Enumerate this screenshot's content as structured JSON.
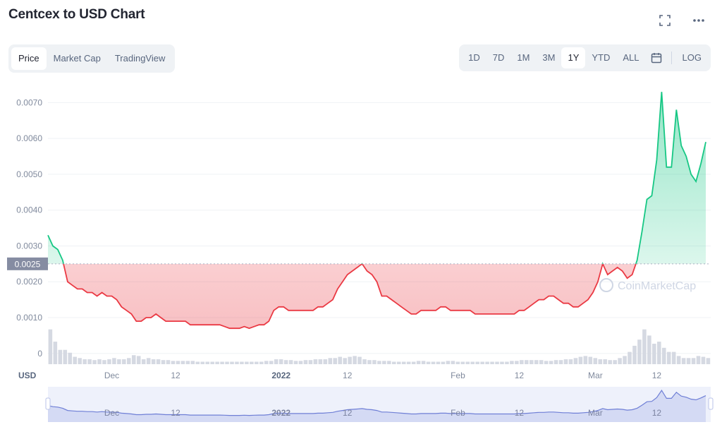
{
  "header": {
    "title": "Centcex to USD Chart",
    "icons": [
      "fullscreen-icon",
      "more-icon"
    ]
  },
  "tabs": [
    {
      "label": "Price",
      "active": true
    },
    {
      "label": "Market Cap",
      "active": false
    },
    {
      "label": "TradingView",
      "active": false
    }
  ],
  "ranges": [
    {
      "label": "1D",
      "active": false
    },
    {
      "label": "7D",
      "active": false
    },
    {
      "label": "1M",
      "active": false
    },
    {
      "label": "3M",
      "active": false
    },
    {
      "label": "1Y",
      "active": true
    },
    {
      "label": "YTD",
      "active": false
    },
    {
      "label": "ALL",
      "active": false
    }
  ],
  "log_label": "LOG",
  "watermark": "CoinMarketCap",
  "colors": {
    "up": "#16c784",
    "down": "#ea3943",
    "grid": "#eff2f5",
    "axis": "#808a9d",
    "navigator": "#b9c3e8"
  },
  "chart_data": {
    "type": "area",
    "ylabel": "USD",
    "ylim": [
      -0.0003,
      0.0075
    ],
    "yticks": [
      0,
      0.001,
      0.002,
      0.003,
      0.004,
      0.005,
      0.006,
      0.007
    ],
    "ytick_labels": [
      "0",
      "0.0010",
      "0.0020",
      "0.0030",
      "0.0040",
      "0.0050",
      "0.0060",
      "0.0070"
    ],
    "baseline": 0.0025,
    "baseline_label": "0.0025",
    "xlim": [
      0,
      135
    ],
    "x_ticks": [
      {
        "x": 13,
        "label": "Dec",
        "bold": false
      },
      {
        "x": 26,
        "label": "12",
        "bold": false
      },
      {
        "x": 47.5,
        "label": "2022",
        "bold": true
      },
      {
        "x": 61,
        "label": "12",
        "bold": false
      },
      {
        "x": 83.5,
        "label": "Feb",
        "bold": false
      },
      {
        "x": 96,
        "label": "12",
        "bold": false
      },
      {
        "x": 111.5,
        "label": "Mar",
        "bold": false
      },
      {
        "x": 124,
        "label": "12",
        "bold": false
      }
    ],
    "x_unit": "days (index)",
    "series": [
      {
        "x": [
          0,
          1,
          2,
          3,
          4,
          5,
          6,
          7,
          8,
          9,
          10,
          11,
          12,
          13,
          14,
          15,
          16,
          17,
          18,
          19,
          20,
          21,
          22,
          23,
          24,
          25,
          26,
          27,
          28,
          29,
          30,
          31,
          32,
          33,
          34,
          35,
          36,
          37,
          38,
          39,
          40,
          41,
          42,
          43,
          44,
          45,
          46,
          47,
          48,
          49,
          50,
          51,
          52,
          53,
          54,
          55,
          56,
          57,
          58,
          59,
          60,
          61,
          62,
          63,
          64,
          65,
          66,
          67,
          68,
          69,
          70,
          71,
          72,
          73,
          74,
          75,
          76,
          77,
          78,
          79,
          80,
          81,
          82,
          83,
          84,
          85,
          86,
          87,
          88,
          89,
          90,
          91,
          92,
          93,
          94,
          95,
          96,
          97,
          98,
          99,
          100,
          101,
          102,
          103,
          104,
          105,
          106,
          107,
          108,
          109,
          110,
          111,
          112,
          113,
          114,
          115,
          116,
          117,
          118,
          119,
          120,
          121,
          122,
          123,
          124,
          125,
          126,
          127,
          128,
          129,
          130,
          131,
          132,
          133,
          134
        ],
        "values": [
          0.0033,
          0.003,
          0.0029,
          0.0026,
          0.002,
          0.0019,
          0.0018,
          0.0018,
          0.0017,
          0.0017,
          0.0016,
          0.0017,
          0.0016,
          0.0016,
          0.0015,
          0.0013,
          0.0012,
          0.0011,
          0.0009,
          0.0009,
          0.001,
          0.001,
          0.0011,
          0.001,
          0.0009,
          0.0009,
          0.0009,
          0.0009,
          0.0009,
          0.0008,
          0.0008,
          0.0008,
          0.0008,
          0.0008,
          0.0008,
          0.0008,
          0.00075,
          0.0007,
          0.0007,
          0.0007,
          0.00075,
          0.0007,
          0.00075,
          0.0008,
          0.0008,
          0.0009,
          0.0012,
          0.0013,
          0.0013,
          0.0012,
          0.0012,
          0.0012,
          0.0012,
          0.0012,
          0.0012,
          0.0013,
          0.0013,
          0.0014,
          0.0015,
          0.0018,
          0.002,
          0.0022,
          0.0023,
          0.0024,
          0.0025,
          0.0023,
          0.0022,
          0.002,
          0.0016,
          0.0016,
          0.0015,
          0.0014,
          0.0013,
          0.0012,
          0.0011,
          0.0011,
          0.0012,
          0.0012,
          0.0012,
          0.0012,
          0.0013,
          0.0013,
          0.0012,
          0.0012,
          0.0012,
          0.0012,
          0.0012,
          0.0011,
          0.0011,
          0.0011,
          0.0011,
          0.0011,
          0.0011,
          0.0011,
          0.0011,
          0.0011,
          0.0012,
          0.0012,
          0.0013,
          0.0014,
          0.0015,
          0.0015,
          0.0016,
          0.0016,
          0.0015,
          0.0014,
          0.0014,
          0.0013,
          0.0013,
          0.0014,
          0.0015,
          0.0017,
          0.002,
          0.0025,
          0.0022,
          0.0023,
          0.0024,
          0.0023,
          0.0021,
          0.0022,
          0.0026,
          0.0034,
          0.0043,
          0.0044,
          0.0054,
          0.0073,
          0.0052,
          0.0052,
          0.0068,
          0.0058,
          0.0055,
          0.005,
          0.0048,
          0.0053,
          0.0059
        ]
      }
    ],
    "volume": [
      0.85,
      0.55,
      0.35,
      0.35,
      0.28,
      0.18,
      0.15,
      0.12,
      0.12,
      0.1,
      0.12,
      0.1,
      0.12,
      0.15,
      0.12,
      0.12,
      0.15,
      0.22,
      0.2,
      0.12,
      0.15,
      0.12,
      0.12,
      0.1,
      0.1,
      0.08,
      0.08,
      0.08,
      0.08,
      0.08,
      0.06,
      0.06,
      0.06,
      0.06,
      0.06,
      0.06,
      0.06,
      0.06,
      0.06,
      0.06,
      0.06,
      0.06,
      0.06,
      0.06,
      0.08,
      0.08,
      0.12,
      0.12,
      0.1,
      0.1,
      0.08,
      0.08,
      0.1,
      0.1,
      0.12,
      0.12,
      0.12,
      0.15,
      0.15,
      0.18,
      0.15,
      0.18,
      0.2,
      0.18,
      0.12,
      0.1,
      0.1,
      0.08,
      0.08,
      0.08,
      0.06,
      0.06,
      0.06,
      0.06,
      0.06,
      0.08,
      0.08,
      0.06,
      0.06,
      0.06,
      0.06,
      0.08,
      0.08,
      0.06,
      0.06,
      0.06,
      0.06,
      0.06,
      0.06,
      0.06,
      0.06,
      0.06,
      0.06,
      0.06,
      0.08,
      0.08,
      0.1,
      0.1,
      0.1,
      0.1,
      0.1,
      0.08,
      0.08,
      0.1,
      0.1,
      0.12,
      0.12,
      0.15,
      0.18,
      0.2,
      0.18,
      0.15,
      0.12,
      0.12,
      0.1,
      0.1,
      0.15,
      0.2,
      0.3,
      0.45,
      0.6,
      0.85,
      0.7,
      0.5,
      0.55,
      0.4,
      0.3,
      0.3,
      0.2,
      0.15,
      0.15,
      0.15,
      0.2,
      0.18,
      0.15
    ]
  }
}
